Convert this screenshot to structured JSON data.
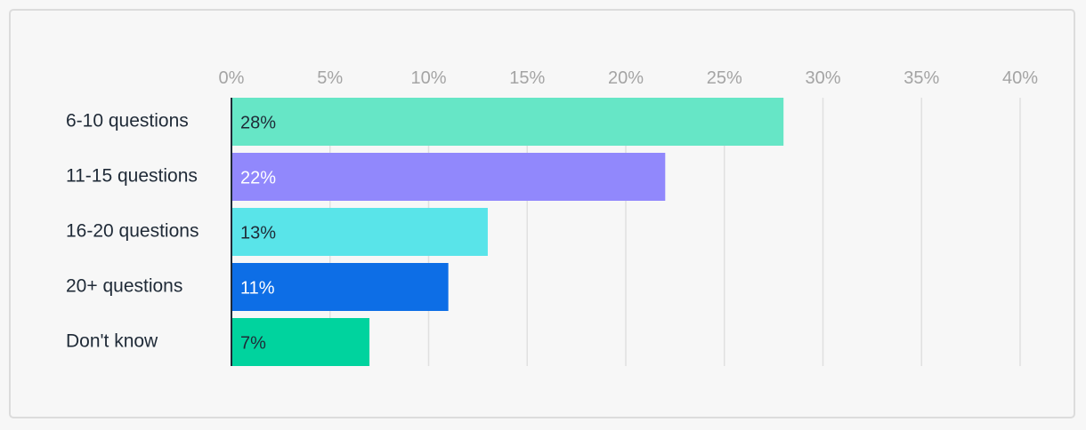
{
  "chart_data": {
    "type": "bar",
    "orientation": "horizontal",
    "categories": [
      "6-10 questions",
      "11-15 questions",
      "16-20 questions",
      "20+ questions",
      "Don't know"
    ],
    "values": [
      28,
      22,
      13,
      11,
      7
    ],
    "data_labels": [
      "28%",
      "22%",
      "13%",
      "11%",
      "7%"
    ],
    "colors": [
      "#66e6c6",
      "#9188fc",
      "#59e4e9",
      "#0d6ee6",
      "#00d39e"
    ],
    "label_colors": [
      "#1f2a37",
      "#ffffff",
      "#1f2a37",
      "#ffffff",
      "#1f2a37"
    ],
    "x_ticks": [
      0,
      5,
      10,
      15,
      20,
      25,
      30,
      35,
      40
    ],
    "x_tick_labels": [
      "0%",
      "5%",
      "10%",
      "15%",
      "20%",
      "25%",
      "30%",
      "35%",
      "40%"
    ],
    "xlim": [
      0,
      40
    ],
    "xaxis_position": "top",
    "grid": true,
    "title": "",
    "xlabel": "",
    "ylabel": ""
  }
}
